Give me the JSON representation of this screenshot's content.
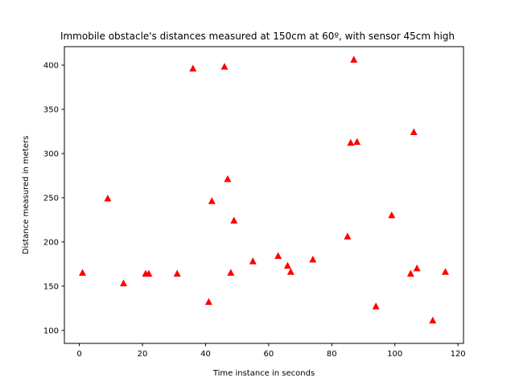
{
  "chart_data": {
    "type": "scatter",
    "title": "Immobile obstacle's distances measured at 150cm at 60º, with sensor 45cm high",
    "xlabel": "Time instance in seconds",
    "ylabel": "Distance measured in meters",
    "xlim": [
      -4.75,
      121.75
    ],
    "ylim": [
      85.3,
      420.9
    ],
    "xticks": [
      0,
      20,
      40,
      60,
      80,
      100,
      120
    ],
    "yticks": [
      100,
      150,
      200,
      250,
      300,
      350,
      400
    ],
    "grid": false,
    "marker": "triangle",
    "color": "#ff0000",
    "x": [
      1,
      9,
      14,
      21,
      22,
      31,
      36,
      41,
      42,
      46,
      47,
      48,
      49,
      55,
      63,
      66,
      67,
      74,
      85,
      86,
      87,
      88,
      94,
      99,
      105,
      106,
      107,
      112,
      116
    ],
    "y": [
      165,
      249,
      153,
      164,
      164,
      164,
      396,
      132,
      246,
      398,
      271,
      165,
      224,
      178,
      184,
      173,
      166,
      180,
      206,
      312,
      406,
      313,
      127,
      230,
      164,
      324,
      170,
      111,
      166
    ]
  }
}
